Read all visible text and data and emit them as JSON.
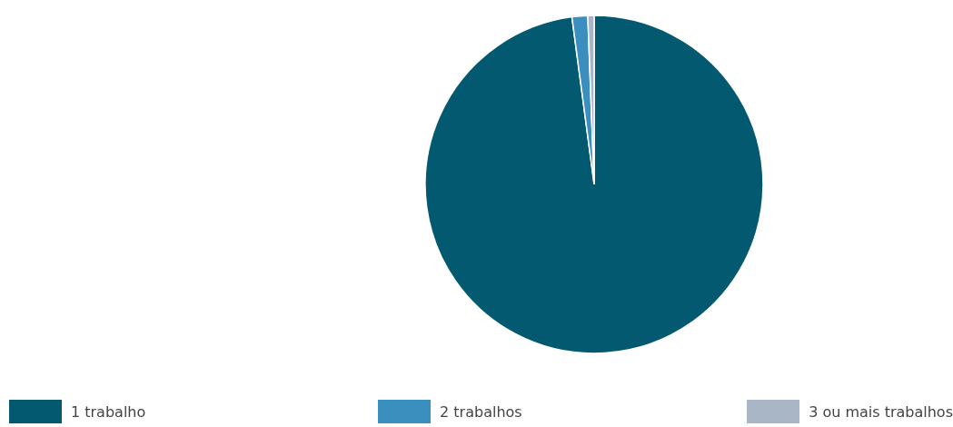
{
  "chart_data": {
    "type": "pie",
    "categories": [
      "1 trabalho",
      "2 trabalhos",
      "3 ou mais trabalhos"
    ],
    "values": [
      97.9,
      1.5,
      0.6
    ],
    "colors": [
      "#035a70",
      "#3a8fbf",
      "#a9b6c6"
    ],
    "legend": "bottom"
  }
}
